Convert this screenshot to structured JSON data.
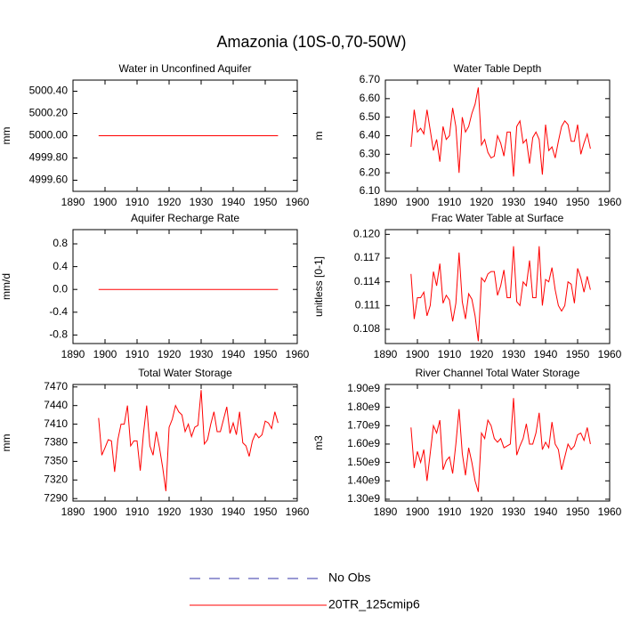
{
  "title": "Amazonia (10S-0,70-50W)",
  "legend": [
    {
      "name": "No Obs",
      "color": "#3333aa",
      "dash": true
    },
    {
      "name": "20TR_125cmip6",
      "color": "#ff0000",
      "dash": false
    }
  ],
  "chart_data": [
    {
      "type": "line",
      "title": "Water in Unconfined Aquifer",
      "ylabel": "mm",
      "color": "#ff0000",
      "x": [
        1898,
        1899,
        1900,
        1901,
        1902,
        1903,
        1904,
        1905,
        1906,
        1907,
        1908,
        1909,
        1910,
        1911,
        1912,
        1913,
        1914,
        1915,
        1916,
        1917,
        1918,
        1919,
        1920,
        1921,
        1922,
        1923,
        1924,
        1925,
        1926,
        1927,
        1928,
        1929,
        1930,
        1931,
        1932,
        1933,
        1934,
        1935,
        1936,
        1937,
        1938,
        1939,
        1940,
        1941,
        1942,
        1943,
        1944,
        1945,
        1946,
        1947,
        1948,
        1949,
        1950,
        1951,
        1952,
        1953,
        1954
      ],
      "values": [
        5000,
        5000,
        5000,
        5000,
        5000,
        5000,
        5000,
        5000,
        5000,
        5000,
        5000,
        5000,
        5000,
        5000,
        5000,
        5000,
        5000,
        5000,
        5000,
        5000,
        5000,
        5000,
        5000,
        5000,
        5000,
        5000,
        5000,
        5000,
        5000,
        5000,
        5000,
        5000,
        5000,
        5000,
        5000,
        5000,
        5000,
        5000,
        5000,
        5000,
        5000,
        5000,
        5000,
        5000,
        5000,
        5000,
        5000,
        5000,
        5000,
        5000,
        5000,
        5000,
        5000,
        5000,
        5000,
        5000,
        5000
      ],
      "xlim": [
        1890,
        1960
      ],
      "xticks": [
        1890,
        1900,
        1910,
        1920,
        1930,
        1940,
        1950,
        1960
      ],
      "ylim": [
        4999.5,
        5000.5
      ],
      "yticks": [
        {
          "value": 4999.6,
          "label": "4999.60"
        },
        {
          "value": 4999.8,
          "label": "4999.80"
        },
        {
          "value": 5000,
          "label": "5000.00"
        },
        {
          "value": 5000.2,
          "label": "5000.20"
        },
        {
          "value": 5000.4,
          "label": "5000.40"
        }
      ]
    },
    {
      "type": "line",
      "title": "Water Table Depth",
      "ylabel": "m",
      "color": "#ff0000",
      "x": [
        1898,
        1899,
        1900,
        1901,
        1902,
        1903,
        1904,
        1905,
        1906,
        1907,
        1908,
        1909,
        1910,
        1911,
        1912,
        1913,
        1914,
        1915,
        1916,
        1917,
        1918,
        1919,
        1920,
        1921,
        1922,
        1923,
        1924,
        1925,
        1926,
        1927,
        1928,
        1929,
        1930,
        1931,
        1932,
        1933,
        1934,
        1935,
        1936,
        1937,
        1938,
        1939,
        1940,
        1941,
        1942,
        1943,
        1944,
        1945,
        1946,
        1947,
        1948,
        1949,
        1950,
        1951,
        1952,
        1953,
        1954
      ],
      "values": [
        6.34,
        6.54,
        6.42,
        6.44,
        6.41,
        6.54,
        6.43,
        6.32,
        6.38,
        6.26,
        6.45,
        6.38,
        6.4,
        6.55,
        6.45,
        6.2,
        6.5,
        6.42,
        6.45,
        6.52,
        6.57,
        6.66,
        6.35,
        6.38,
        6.31,
        6.28,
        6.29,
        6.4,
        6.36,
        6.29,
        6.42,
        6.42,
        6.18,
        6.45,
        6.48,
        6.36,
        6.38,
        6.25,
        6.39,
        6.42,
        6.38,
        6.19,
        6.46,
        6.32,
        6.34,
        6.28,
        6.37,
        6.45,
        6.48,
        6.46,
        6.37,
        6.37,
        6.46,
        6.3,
        6.36,
        6.41,
        6.33
      ],
      "xlim": [
        1890,
        1960
      ],
      "xticks": [
        1890,
        1900,
        1910,
        1920,
        1930,
        1940,
        1950,
        1960
      ],
      "ylim": [
        6.1,
        6.7
      ],
      "yticks": [
        {
          "value": 6.1,
          "label": "6.10"
        },
        {
          "value": 6.2,
          "label": "6.20"
        },
        {
          "value": 6.3,
          "label": "6.30"
        },
        {
          "value": 6.4,
          "label": "6.40"
        },
        {
          "value": 6.5,
          "label": "6.50"
        },
        {
          "value": 6.6,
          "label": "6.60"
        },
        {
          "value": 6.7,
          "label": "6.70"
        }
      ]
    },
    {
      "type": "line",
      "title": "Aquifer Recharge Rate",
      "ylabel": "mm/d",
      "color": "#ff0000",
      "x": [
        1898,
        1899,
        1900,
        1901,
        1902,
        1903,
        1904,
        1905,
        1906,
        1907,
        1908,
        1909,
        1910,
        1911,
        1912,
        1913,
        1914,
        1915,
        1916,
        1917,
        1918,
        1919,
        1920,
        1921,
        1922,
        1923,
        1924,
        1925,
        1926,
        1927,
        1928,
        1929,
        1930,
        1931,
        1932,
        1933,
        1934,
        1935,
        1936,
        1937,
        1938,
        1939,
        1940,
        1941,
        1942,
        1943,
        1944,
        1945,
        1946,
        1947,
        1948,
        1949,
        1950,
        1951,
        1952,
        1953,
        1954
      ],
      "values": [
        0,
        0,
        0,
        0,
        0,
        0,
        0,
        0,
        0,
        0,
        0,
        0,
        0,
        0,
        0,
        0,
        0,
        0,
        0,
        0,
        0,
        0,
        0,
        0,
        0,
        0,
        0,
        0,
        0,
        0,
        0,
        0,
        0,
        0,
        0,
        0,
        0,
        0,
        0,
        0,
        0,
        0,
        0,
        0,
        0,
        0,
        0,
        0,
        0,
        0,
        0,
        0,
        0,
        0,
        0,
        0,
        0
      ],
      "xlim": [
        1890,
        1960
      ],
      "xticks": [
        1890,
        1900,
        1910,
        1920,
        1930,
        1940,
        1950,
        1960
      ],
      "ylim": [
        -0.95,
        1.05
      ],
      "yticks": [
        -0.8,
        -0.4,
        {
          "value": 0,
          "label": "0.0"
        },
        0.4,
        0.8
      ]
    },
    {
      "type": "line",
      "title": "Frac Water Table at Surface",
      "ylabel": "unitless [0-1]",
      "color": "#ff0000",
      "x": [
        1898,
        1899,
        1900,
        1901,
        1902,
        1903,
        1904,
        1905,
        1906,
        1907,
        1908,
        1909,
        1910,
        1911,
        1912,
        1913,
        1914,
        1915,
        1916,
        1917,
        1918,
        1919,
        1920,
        1921,
        1922,
        1923,
        1924,
        1925,
        1926,
        1927,
        1928,
        1929,
        1930,
        1931,
        1932,
        1933,
        1934,
        1935,
        1936,
        1937,
        1938,
        1939,
        1940,
        1941,
        1942,
        1943,
        1944,
        1945,
        1946,
        1947,
        1948,
        1949,
        1950,
        1951,
        1952,
        1953,
        1954
      ],
      "values": [
        0.115,
        0.1093,
        0.112,
        0.112,
        0.1127,
        0.1097,
        0.111,
        0.1153,
        0.1135,
        0.1163,
        0.1113,
        0.1123,
        0.1117,
        0.109,
        0.1113,
        0.1177,
        0.1115,
        0.1093,
        0.1125,
        0.1118,
        0.1097,
        0.1065,
        0.1145,
        0.114,
        0.115,
        0.1153,
        0.1153,
        0.1123,
        0.1135,
        0.1155,
        0.112,
        0.112,
        0.1185,
        0.1115,
        0.111,
        0.114,
        0.1135,
        0.1167,
        0.112,
        0.112,
        0.1185,
        0.111,
        0.1143,
        0.114,
        0.1158,
        0.113,
        0.111,
        0.1103,
        0.111,
        0.114,
        0.1137,
        0.1113,
        0.1157,
        0.1145,
        0.1127,
        0.1147,
        0.113
      ],
      "xlim": [
        1890,
        1960
      ],
      "xticks": [
        1890,
        1900,
        1910,
        1920,
        1930,
        1940,
        1950,
        1960
      ],
      "ylim": [
        0.1062,
        0.1206
      ],
      "yticks": [
        0.108,
        0.111,
        0.114,
        0.117,
        {
          "value": 0.12,
          "label": "0.120"
        }
      ]
    },
    {
      "type": "line",
      "title": "Total Water Storage",
      "ylabel": "mm",
      "color": "#ff0000",
      "x": [
        1898,
        1899,
        1900,
        1901,
        1902,
        1903,
        1904,
        1905,
        1906,
        1907,
        1908,
        1909,
        1910,
        1911,
        1912,
        1913,
        1914,
        1915,
        1916,
        1917,
        1918,
        1919,
        1920,
        1921,
        1922,
        1923,
        1924,
        1925,
        1926,
        1927,
        1928,
        1929,
        1930,
        1931,
        1932,
        1933,
        1934,
        1935,
        1936,
        1937,
        1938,
        1939,
        1940,
        1941,
        1942,
        1943,
        1944,
        1945,
        1946,
        1947,
        1948,
        1949,
        1950,
        1951,
        1952,
        1953,
        1954
      ],
      "values": [
        7420,
        7360,
        7372,
        7385,
        7383,
        7333,
        7385,
        7410,
        7410,
        7440,
        7375,
        7383,
        7383,
        7335,
        7395,
        7440,
        7375,
        7360,
        7398,
        7372,
        7340,
        7302,
        7405,
        7418,
        7440,
        7430,
        7425,
        7398,
        7410,
        7390,
        7405,
        7408,
        7465,
        7378,
        7385,
        7410,
        7430,
        7398,
        7398,
        7418,
        7438,
        7395,
        7412,
        7393,
        7430,
        7380,
        7375,
        7358,
        7383,
        7395,
        7388,
        7393,
        7415,
        7412,
        7403,
        7430,
        7412
      ],
      "xlim": [
        1890,
        1960
      ],
      "xticks": [
        1890,
        1900,
        1910,
        1920,
        1930,
        1940,
        1950,
        1960
      ],
      "ylim": [
        7286,
        7474
      ],
      "yticks": [
        7290,
        7320,
        7350,
        7380,
        7410,
        7440,
        7470
      ]
    },
    {
      "type": "line",
      "title": "River Channel Total Water Storage",
      "ylabel": "m3",
      "color": "#ff0000",
      "x": [
        1898,
        1899,
        1900,
        1901,
        1902,
        1903,
        1904,
        1905,
        1906,
        1907,
        1908,
        1909,
        1910,
        1911,
        1912,
        1913,
        1914,
        1915,
        1916,
        1917,
        1918,
        1919,
        1920,
        1921,
        1922,
        1923,
        1924,
        1925,
        1926,
        1927,
        1928,
        1929,
        1930,
        1931,
        1932,
        1933,
        1934,
        1935,
        1936,
        1937,
        1938,
        1939,
        1940,
        1941,
        1942,
        1943,
        1944,
        1945,
        1946,
        1947,
        1948,
        1949,
        1950,
        1951,
        1952,
        1953,
        1954
      ],
      "values": [
        1690000000.0,
        1470000000.0,
        1560000000.0,
        1500000000.0,
        1570000000.0,
        1400000000.0,
        1550000000.0,
        1700000000.0,
        1660000000.0,
        1730000000.0,
        1460000000.0,
        1510000000.0,
        1530000000.0,
        1440000000.0,
        1600000000.0,
        1790000000.0,
        1550000000.0,
        1430000000.0,
        1580000000.0,
        1500000000.0,
        1400000000.0,
        1340000000.0,
        1660000000.0,
        1630000000.0,
        1730000000.0,
        1700000000.0,
        1630000000.0,
        1610000000.0,
        1630000000.0,
        1580000000.0,
        1590000000.0,
        1600000000.0,
        1850000000.0,
        1540000000.0,
        1590000000.0,
        1630000000.0,
        1710000000.0,
        1600000000.0,
        1600000000.0,
        1660000000.0,
        1770000000.0,
        1570000000.0,
        1610000000.0,
        1580000000.0,
        1720000000.0,
        1600000000.0,
        1570000000.0,
        1460000000.0,
        1530000000.0,
        1600000000.0,
        1570000000.0,
        1590000000.0,
        1650000000.0,
        1660000000.0,
        1620000000.0,
        1690000000.0,
        1600000000.0
      ],
      "xlim": [
        1890,
        1960
      ],
      "xticks": [
        1890,
        1900,
        1910,
        1920,
        1930,
        1940,
        1950,
        1960
      ],
      "ylim": [
        1290000000.0,
        1924000000.0
      ],
      "yticks": [
        {
          "value": 1300000000.0,
          "label": "1.30e9"
        },
        {
          "value": 1400000000.0,
          "label": "1.40e9"
        },
        {
          "value": 1500000000.0,
          "label": "1.50e9"
        },
        {
          "value": 1600000000.0,
          "label": "1.60e9"
        },
        {
          "value": 1700000000.0,
          "label": "1.70e9"
        },
        {
          "value": 1800000000.0,
          "label": "1.80e9"
        },
        {
          "value": 1900000000.0,
          "label": "1.90e9"
        }
      ]
    }
  ]
}
